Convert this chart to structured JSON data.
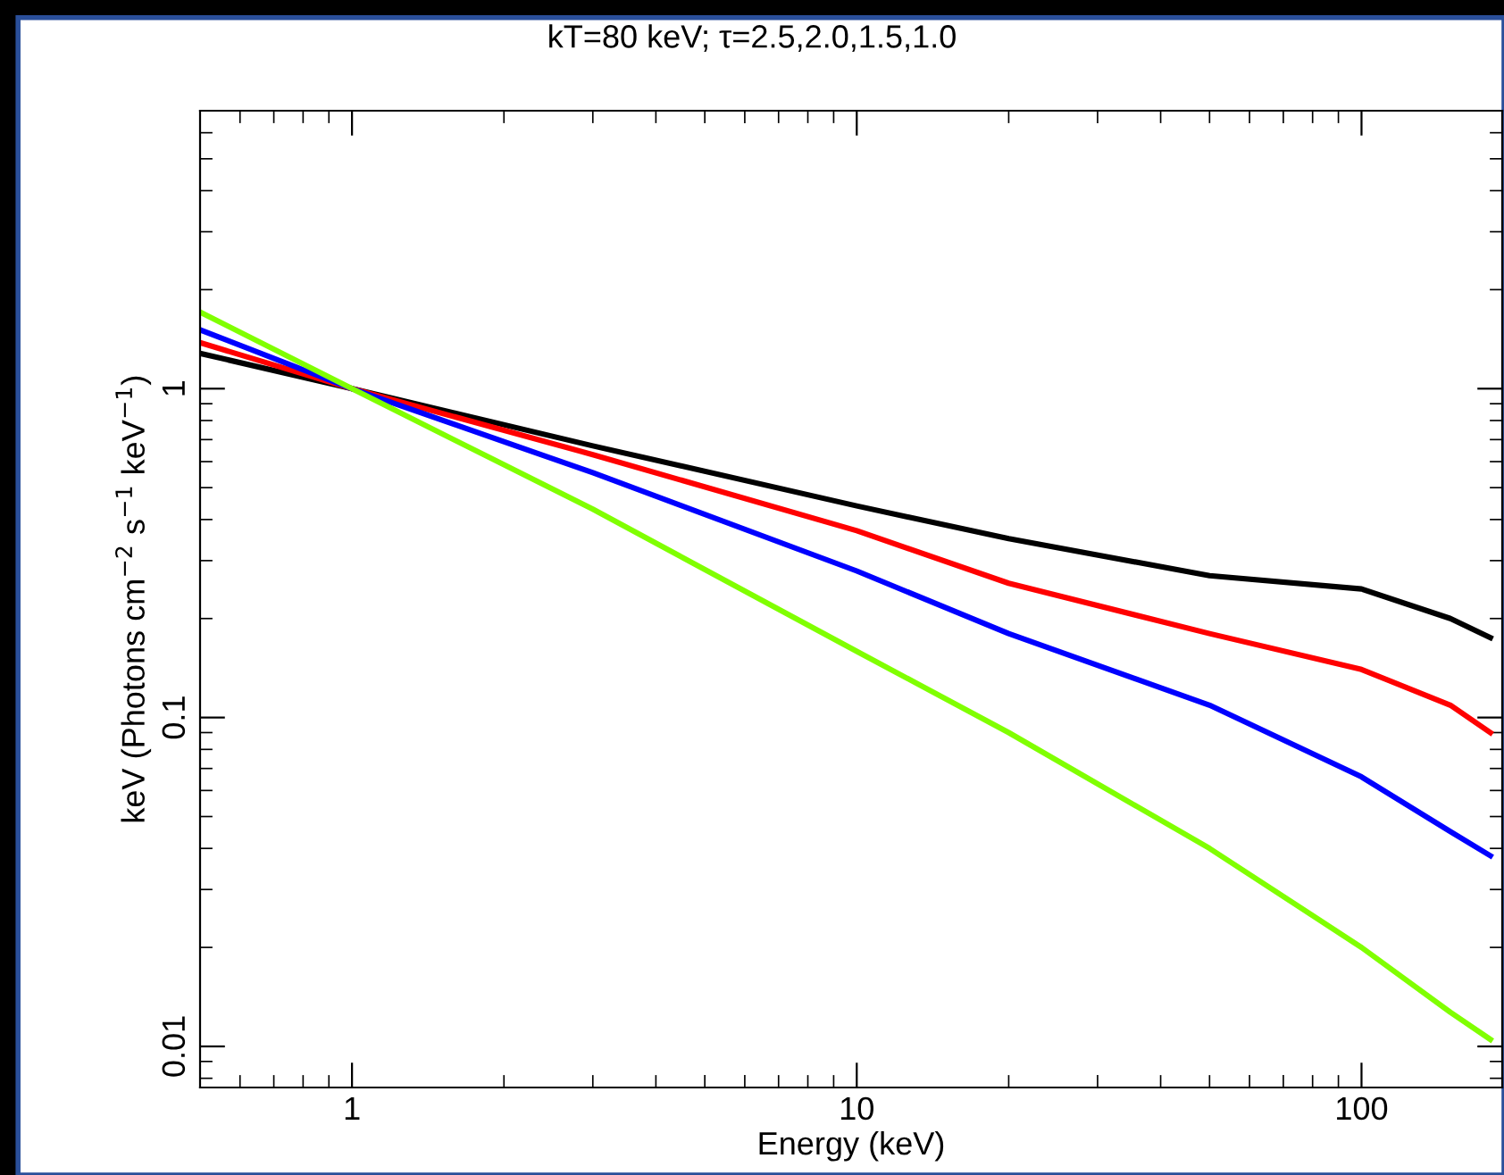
{
  "chart_data": {
    "type": "line",
    "title": "kT=80 keV; τ=2.5,2.0,1.5,1.0",
    "xlabel": "Energy (keV)",
    "ylabel": "keV (Photons cm$^{−2}$ s$^{−1}$ keV$^{−1}$)",
    "x": [
      0.5,
      1,
      3,
      10,
      20,
      50,
      100,
      150,
      180
    ],
    "series": [
      {
        "color": "#000000",
        "values": [
          1.28,
          1,
          0.67,
          0.44,
          0.35,
          0.27,
          0.246,
          0.2,
          0.175
        ]
      },
      {
        "color": "#ff0000",
        "values": [
          1.38,
          1,
          0.63,
          0.37,
          0.256,
          0.18,
          0.14,
          0.109,
          0.09
        ]
      },
      {
        "color": "#0000ff",
        "values": [
          1.51,
          1,
          0.555,
          0.279,
          0.18,
          0.109,
          0.066,
          0.045,
          0.038
        ]
      },
      {
        "color": "#80ff00",
        "values": [
          1.71,
          1,
          0.43,
          0.159,
          0.09,
          0.04,
          0.02,
          0.0127,
          0.0105
        ]
      }
    ],
    "log": "xy",
    "xlim": [
      0.5,
      190
    ],
    "ylim": [
      0.0075,
      7
    ],
    "xticks": [
      1,
      10,
      100
    ],
    "yticks": [
      0.01,
      0.1,
      1
    ],
    "grid": false,
    "marker": "none",
    "line_style": "solid"
  }
}
